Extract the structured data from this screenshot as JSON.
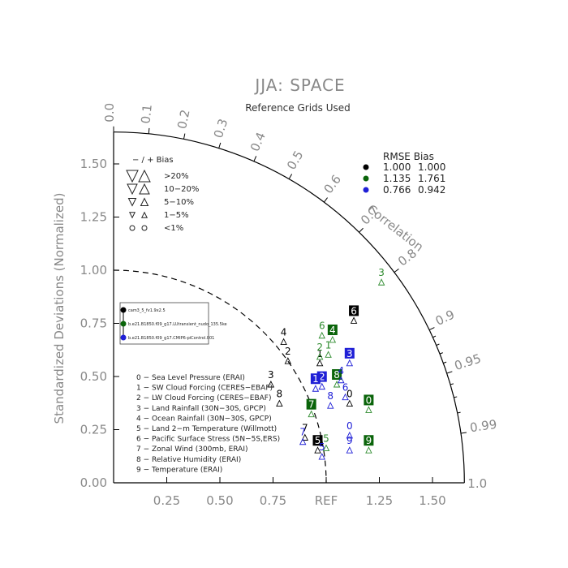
{
  "colors": {
    "black": "#000000",
    "green": "#0a640a",
    "green_text": "#2e8b2e",
    "blue": "#1f1fd6",
    "gray": "#888888"
  },
  "chart_data": {
    "type": "taylor",
    "title": "JJA: SPACE",
    "subtitle": "Reference Grids Used",
    "ylabel": "Standardized Deviations (Normalized)",
    "correlation_label": "Correlation",
    "ref_label": "REF",
    "std_max": 1.65,
    "x_ticks": [
      "0.25",
      "0.50",
      "0.75",
      "REF",
      "1.25",
      "1.50",
      "1.0"
    ],
    "y_ticks": [
      "0.00",
      "0.25",
      "0.50",
      "0.75",
      "1.00",
      "1.25",
      "1.50"
    ],
    "corr_ticks": [
      {
        "r": 0.0,
        "label": "0.0"
      },
      {
        "r": 0.1,
        "label": "0.1"
      },
      {
        "r": 0.2,
        "label": "0.2"
      },
      {
        "r": 0.3,
        "label": "0.3"
      },
      {
        "r": 0.4,
        "label": "0.4"
      },
      {
        "r": 0.5,
        "label": "0.5"
      },
      {
        "r": 0.6,
        "label": "0.6"
      },
      {
        "r": 0.7,
        "label": "0.7"
      },
      {
        "r": 0.8,
        "label": "0.8"
      },
      {
        "r": 0.9,
        "label": "0.9"
      },
      {
        "r": 0.95,
        "label": "0.95"
      },
      {
        "r": 0.99,
        "label": "0.99"
      }
    ],
    "bias_legend": {
      "header": "−  /  +    Bias",
      "rows": [
        ">20%",
        "10−20%",
        "5−10%",
        "1−5%",
        "<1%"
      ]
    },
    "rmse_table": {
      "header": "RMSE  Bias",
      "rows": [
        {
          "color": "black",
          "rmse": "1.000",
          "bias": "1.000"
        },
        {
          "color": "green",
          "rmse": "1.135",
          "bias": "1.761"
        },
        {
          "color": "blue",
          "rmse": "0.766",
          "bias": "0.942"
        }
      ]
    },
    "cases": [
      {
        "color": "black",
        "name": "cam3_5_fv1.9x2.5"
      },
      {
        "color": "green",
        "name": "b.e21.B1850.f09_g17.LUtransient_nudo_135.5ke"
      },
      {
        "color": "blue",
        "name": "b.e21.B1850.f09_g17.CMIP6-piControl.001"
      }
    ],
    "variables": [
      "0 − Sea Level Pressure (ERAI)",
      "1 − SW Cloud Forcing (CERES−EBAF)",
      "2 − LW Cloud Forcing (CERES−EBAF)",
      "3 − Land Rainfall (30N−30S, GPCP)",
      "4 − Ocean Rainfall (30N−30S, GPCP)",
      "5 − Land 2−m Temperature (Willmott)",
      "6 − Pacific Surface Stress (5N−5S,ERS)",
      "7 − Zonal Wind (300mb, ERAI)",
      "8 − Relative Humidity (ERAI)",
      "9 − Temperature (ERAI)"
    ],
    "points": [
      {
        "series": "black",
        "var": "6",
        "x": 1.13,
        "y": 0.8,
        "boxed": true
      },
      {
        "series": "black",
        "var": "4",
        "x": 0.8,
        "y": 0.7
      },
      {
        "series": "black",
        "var": "2",
        "x": 0.82,
        "y": 0.61
      },
      {
        "series": "black",
        "var": "3",
        "x": 0.74,
        "y": 0.5
      },
      {
        "series": "black",
        "var": "8",
        "x": 0.78,
        "y": 0.41
      },
      {
        "series": "black",
        "var": "1",
        "x": 0.97,
        "y": 0.6
      },
      {
        "series": "black",
        "var": "7",
        "x": 0.9,
        "y": 0.25
      },
      {
        "series": "black",
        "var": "5",
        "x": 0.96,
        "y": 0.19,
        "boxed": true
      },
      {
        "series": "black",
        "var": "0",
        "x": 1.11,
        "y": 0.41
      },
      {
        "series": "green",
        "var": "3",
        "x": 1.26,
        "y": 0.98
      },
      {
        "series": "green",
        "var": "6",
        "x": 0.98,
        "y": 0.73
      },
      {
        "series": "green",
        "var": "4",
        "x": 1.03,
        "y": 0.71,
        "boxed": true
      },
      {
        "series": "green",
        "var": "2",
        "x": 0.97,
        "y": 0.63
      },
      {
        "series": "green",
        "var": "1",
        "x": 1.01,
        "y": 0.64
      },
      {
        "series": "green",
        "var": "8",
        "x": 1.05,
        "y": 0.5,
        "boxed": true
      },
      {
        "series": "green",
        "var": "0",
        "x": 1.2,
        "y": 0.38,
        "boxed": true
      },
      {
        "series": "green",
        "var": "7",
        "x": 0.93,
        "y": 0.36,
        "boxed": true
      },
      {
        "series": "green",
        "var": "5",
        "x": 1.0,
        "y": 0.2
      },
      {
        "series": "green",
        "var": "9",
        "x": 1.2,
        "y": 0.19,
        "boxed": true
      },
      {
        "series": "blue",
        "var": "3",
        "x": 1.11,
        "y": 0.6,
        "boxed": true
      },
      {
        "series": "blue",
        "var": "2",
        "x": 0.98,
        "y": 0.49,
        "boxed": true
      },
      {
        "series": "blue",
        "var": "1",
        "x": 0.95,
        "y": 0.48,
        "boxed": true
      },
      {
        "series": "blue",
        "var": "4",
        "x": 1.07,
        "y": 0.52
      },
      {
        "series": "blue",
        "var": "6",
        "x": 1.09,
        "y": 0.44
      },
      {
        "series": "blue",
        "var": "8",
        "x": 1.02,
        "y": 0.4
      },
      {
        "series": "blue",
        "var": "7",
        "x": 0.89,
        "y": 0.23
      },
      {
        "series": "blue",
        "var": "5",
        "x": 0.98,
        "y": 0.16
      },
      {
        "series": "blue",
        "var": "0",
        "x": 1.11,
        "y": 0.26
      },
      {
        "series": "blue",
        "var": "9",
        "x": 1.11,
        "y": 0.19
      }
    ]
  }
}
